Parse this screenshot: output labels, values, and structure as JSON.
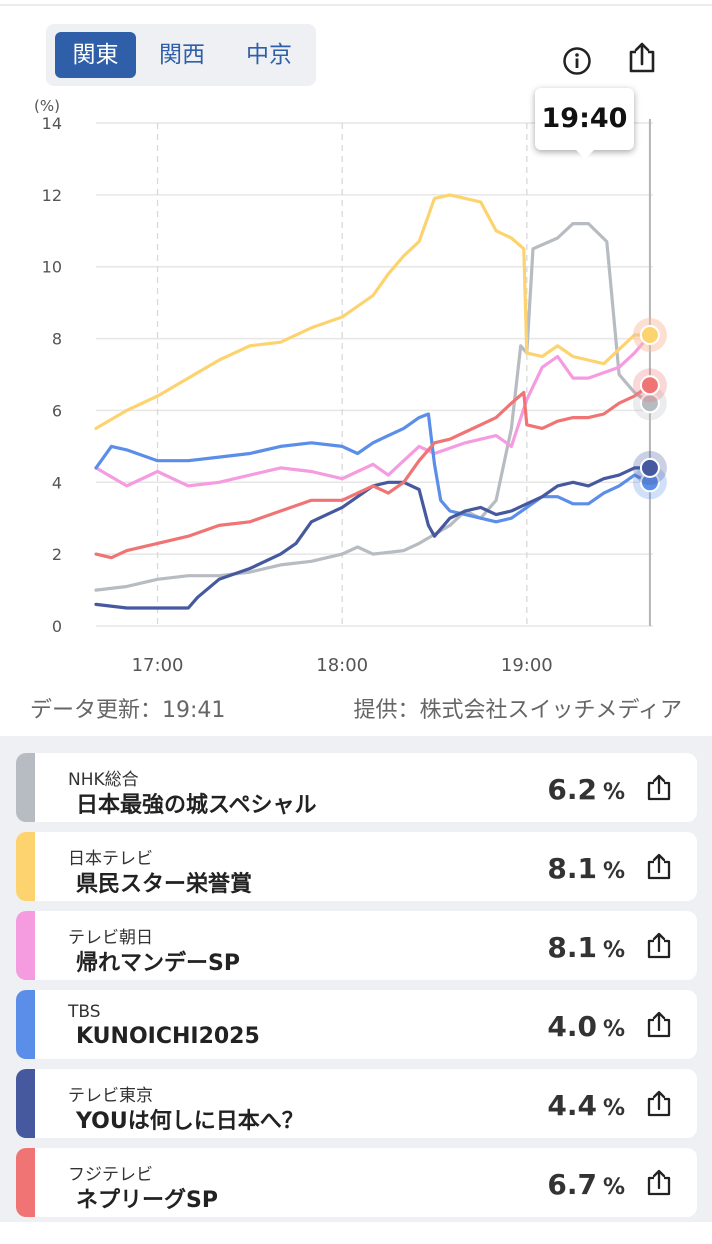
{
  "region_tabs": [
    "関東",
    "関西",
    "中京"
  ],
  "active_region": "関東",
  "tooltip_time": "19:40",
  "update_label": "データ更新：19:41",
  "provider_label": "提供：株式会社スイッチメディア",
  "colors": {
    "accent": "#2f5fa8",
    "nhk": "#b7bbc2",
    "ntv": "#fdd36f",
    "tvasahi": "#f59be0",
    "tbs": "#5b8ee8",
    "tvtokyo": "#46599f",
    "fuji": "#f07474"
  },
  "programs": [
    {
      "station": "NHK総合",
      "title": "日本最強の城スペシャル",
      "rating": "6.2",
      "unit": "%",
      "color": "#b7bbc2"
    },
    {
      "station": "日本テレビ",
      "title": "県民スター栄誉賞",
      "rating": "8.1",
      "unit": "%",
      "color": "#fdd36f"
    },
    {
      "station": "テレビ朝日",
      "title": "帰れマンデーSP",
      "rating": "8.1",
      "unit": "%",
      "color": "#f59be0"
    },
    {
      "station": "TBS",
      "title": "KUNOICHI2025",
      "rating": "4.0",
      "unit": "%",
      "color": "#5b8ee8"
    },
    {
      "station": "テレビ東京",
      "title": "YOUは何しに日本へ？",
      "rating": "4.4",
      "unit": "%",
      "color": "#46599f"
    },
    {
      "station": "フジテレビ",
      "title": "ネプリーグSP",
      "rating": "6.7",
      "unit": "%",
      "color": "#f07474"
    }
  ],
  "chart_data": {
    "type": "line",
    "ylabel": "(%)",
    "ylim": [
      0,
      14
    ],
    "yticks": [
      0,
      2,
      4,
      6,
      8,
      10,
      12,
      14
    ],
    "xlim": [
      "16:40",
      "19:41"
    ],
    "xticks": [
      "17:00",
      "18:00",
      "19:00"
    ],
    "cursor_time": "19:40",
    "grid": true,
    "series": [
      {
        "name": "NHK総合",
        "color": "#b7bbc2",
        "points": [
          [
            "16:40",
            1.0
          ],
          [
            "16:50",
            1.1
          ],
          [
            "17:00",
            1.3
          ],
          [
            "17:10",
            1.4
          ],
          [
            "17:20",
            1.4
          ],
          [
            "17:30",
            1.5
          ],
          [
            "17:40",
            1.7
          ],
          [
            "17:50",
            1.8
          ],
          [
            "18:00",
            2.0
          ],
          [
            "18:05",
            2.2
          ],
          [
            "18:10",
            2.0
          ],
          [
            "18:20",
            2.1
          ],
          [
            "18:25",
            2.3
          ],
          [
            "18:35",
            2.8
          ],
          [
            "18:40",
            3.2
          ],
          [
            "18:45",
            3.0
          ],
          [
            "18:50",
            3.5
          ],
          [
            "18:55",
            5.5
          ],
          [
            "18:58",
            7.8
          ],
          [
            "19:00",
            7.6
          ],
          [
            "19:02",
            10.5
          ],
          [
            "19:10",
            10.8
          ],
          [
            "19:15",
            11.2
          ],
          [
            "19:20",
            11.2
          ],
          [
            "19:26",
            10.7
          ],
          [
            "19:30",
            7.0
          ],
          [
            "19:35",
            6.5
          ],
          [
            "19:40",
            6.2
          ]
        ]
      },
      {
        "name": "日本テレビ",
        "color": "#fdd36f",
        "points": [
          [
            "16:40",
            5.5
          ],
          [
            "16:50",
            6.0
          ],
          [
            "17:00",
            6.4
          ],
          [
            "17:10",
            6.9
          ],
          [
            "17:20",
            7.4
          ],
          [
            "17:30",
            7.8
          ],
          [
            "17:40",
            7.9
          ],
          [
            "17:50",
            8.3
          ],
          [
            "18:00",
            8.6
          ],
          [
            "18:10",
            9.2
          ],
          [
            "18:15",
            9.8
          ],
          [
            "18:20",
            10.3
          ],
          [
            "18:25",
            10.7
          ],
          [
            "18:30",
            11.9
          ],
          [
            "18:35",
            12.0
          ],
          [
            "18:40",
            11.9
          ],
          [
            "18:45",
            11.8
          ],
          [
            "18:50",
            11.0
          ],
          [
            "18:55",
            10.8
          ],
          [
            "18:59",
            10.5
          ],
          [
            "19:00",
            7.6
          ],
          [
            "19:05",
            7.5
          ],
          [
            "19:10",
            7.8
          ],
          [
            "19:15",
            7.5
          ],
          [
            "19:25",
            7.3
          ],
          [
            "19:30",
            7.7
          ],
          [
            "19:35",
            8.1
          ],
          [
            "19:40",
            8.1
          ]
        ]
      },
      {
        "name": "テレビ朝日",
        "color": "#f59be0",
        "points": [
          [
            "16:40",
            4.4
          ],
          [
            "16:50",
            3.9
          ],
          [
            "17:00",
            4.3
          ],
          [
            "17:10",
            3.9
          ],
          [
            "17:20",
            4.0
          ],
          [
            "17:30",
            4.2
          ],
          [
            "17:40",
            4.4
          ],
          [
            "17:50",
            4.3
          ],
          [
            "18:00",
            4.1
          ],
          [
            "18:05",
            4.3
          ],
          [
            "18:10",
            4.5
          ],
          [
            "18:15",
            4.2
          ],
          [
            "18:20",
            4.6
          ],
          [
            "18:25",
            5.0
          ],
          [
            "18:30",
            4.8
          ],
          [
            "18:40",
            5.1
          ],
          [
            "18:50",
            5.3
          ],
          [
            "18:55",
            5.0
          ],
          [
            "19:00",
            6.3
          ],
          [
            "19:05",
            7.2
          ],
          [
            "19:10",
            7.5
          ],
          [
            "19:15",
            6.9
          ],
          [
            "19:20",
            6.9
          ],
          [
            "19:30",
            7.2
          ],
          [
            "19:35",
            7.6
          ],
          [
            "19:40",
            8.1
          ]
        ]
      },
      {
        "name": "TBS",
        "color": "#5b8ee8",
        "points": [
          [
            "16:40",
            4.4
          ],
          [
            "16:45",
            5.0
          ],
          [
            "16:50",
            4.9
          ],
          [
            "17:00",
            4.6
          ],
          [
            "17:10",
            4.6
          ],
          [
            "17:20",
            4.7
          ],
          [
            "17:30",
            4.8
          ],
          [
            "17:40",
            5.0
          ],
          [
            "17:50",
            5.1
          ],
          [
            "18:00",
            5.0
          ],
          [
            "18:05",
            4.8
          ],
          [
            "18:10",
            5.1
          ],
          [
            "18:15",
            5.3
          ],
          [
            "18:20",
            5.5
          ],
          [
            "18:25",
            5.8
          ],
          [
            "18:28",
            5.9
          ],
          [
            "18:30",
            4.5
          ],
          [
            "18:32",
            3.5
          ],
          [
            "18:35",
            3.2
          ],
          [
            "18:40",
            3.1
          ],
          [
            "18:45",
            3.0
          ],
          [
            "18:50",
            2.9
          ],
          [
            "18:55",
            3.0
          ],
          [
            "19:00",
            3.3
          ],
          [
            "19:05",
            3.6
          ],
          [
            "19:10",
            3.6
          ],
          [
            "19:15",
            3.4
          ],
          [
            "19:20",
            3.4
          ],
          [
            "19:25",
            3.7
          ],
          [
            "19:30",
            3.9
          ],
          [
            "19:35",
            4.2
          ],
          [
            "19:40",
            4.0
          ]
        ]
      },
      {
        "name": "テレビ東京",
        "color": "#46599f",
        "points": [
          [
            "16:40",
            0.6
          ],
          [
            "16:50",
            0.5
          ],
          [
            "17:00",
            0.5
          ],
          [
            "17:10",
            0.5
          ],
          [
            "17:13",
            0.8
          ],
          [
            "17:20",
            1.3
          ],
          [
            "17:30",
            1.6
          ],
          [
            "17:40",
            2.0
          ],
          [
            "17:45",
            2.3
          ],
          [
            "17:50",
            2.9
          ],
          [
            "18:00",
            3.3
          ],
          [
            "18:05",
            3.6
          ],
          [
            "18:10",
            3.9
          ],
          [
            "18:15",
            4.0
          ],
          [
            "18:20",
            4.0
          ],
          [
            "18:25",
            3.8
          ],
          [
            "18:28",
            2.8
          ],
          [
            "18:30",
            2.5
          ],
          [
            "18:35",
            3.0
          ],
          [
            "18:40",
            3.2
          ],
          [
            "18:45",
            3.3
          ],
          [
            "18:50",
            3.1
          ],
          [
            "18:55",
            3.2
          ],
          [
            "19:00",
            3.4
          ],
          [
            "19:05",
            3.6
          ],
          [
            "19:10",
            3.9
          ],
          [
            "19:15",
            4.0
          ],
          [
            "19:20",
            3.9
          ],
          [
            "19:25",
            4.1
          ],
          [
            "19:30",
            4.2
          ],
          [
            "19:35",
            4.4
          ],
          [
            "19:40",
            4.4
          ]
        ]
      },
      {
        "name": "フジテレビ",
        "color": "#f07474",
        "points": [
          [
            "16:40",
            2.0
          ],
          [
            "16:45",
            1.9
          ],
          [
            "16:50",
            2.1
          ],
          [
            "17:00",
            2.3
          ],
          [
            "17:10",
            2.5
          ],
          [
            "17:20",
            2.8
          ],
          [
            "17:30",
            2.9
          ],
          [
            "17:40",
            3.2
          ],
          [
            "17:50",
            3.5
          ],
          [
            "18:00",
            3.5
          ],
          [
            "18:05",
            3.7
          ],
          [
            "18:10",
            3.9
          ],
          [
            "18:15",
            3.7
          ],
          [
            "18:20",
            4.0
          ],
          [
            "18:25",
            4.6
          ],
          [
            "18:30",
            5.1
          ],
          [
            "18:35",
            5.2
          ],
          [
            "18:40",
            5.4
          ],
          [
            "18:45",
            5.6
          ],
          [
            "18:50",
            5.8
          ],
          [
            "18:55",
            6.2
          ],
          [
            "18:59",
            6.5
          ],
          [
            "19:00",
            5.6
          ],
          [
            "19:05",
            5.5
          ],
          [
            "19:10",
            5.7
          ],
          [
            "19:15",
            5.8
          ],
          [
            "19:20",
            5.8
          ],
          [
            "19:25",
            5.9
          ],
          [
            "19:30",
            6.2
          ],
          [
            "19:35",
            6.4
          ],
          [
            "19:40",
            6.7
          ]
        ]
      }
    ]
  }
}
